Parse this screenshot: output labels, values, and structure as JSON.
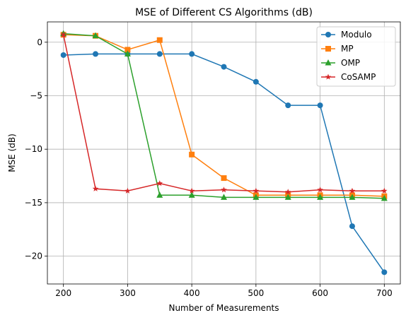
{
  "chart_data": {
    "type": "line",
    "title": "MSE of Different CS Algorithms (dB)",
    "xlabel": "Number of Measurements",
    "ylabel": "MSE (dB)",
    "xlim": [
      175,
      725
    ],
    "ylim": [
      -22.6,
      1.9
    ],
    "xticks": [
      200,
      300,
      400,
      500,
      600,
      700
    ],
    "yticks": [
      0,
      -5,
      -10,
      -15,
      -20
    ],
    "ytick_labels": [
      "0",
      "−5",
      "−10",
      "−15",
      "−20"
    ],
    "grid": true,
    "legend_position": "top-right",
    "x": [
      200,
      250,
      300,
      350,
      400,
      450,
      500,
      550,
      600,
      650,
      700
    ],
    "series": [
      {
        "name": "Modulo",
        "color": "#1f77b4",
        "marker": "circle",
        "values": [
          -1.2,
          -1.1,
          -1.1,
          -1.1,
          -1.1,
          -2.3,
          -3.7,
          -5.9,
          -5.9,
          -17.2,
          -21.5
        ]
      },
      {
        "name": "MP",
        "color": "#ff7f0e",
        "marker": "square",
        "values": [
          0.7,
          0.6,
          -0.7,
          0.2,
          -10.5,
          -12.7,
          -14.3,
          -14.3,
          -14.3,
          -14.3,
          -14.4
        ]
      },
      {
        "name": "OMP",
        "color": "#2ca02c",
        "marker": "triangle",
        "values": [
          0.8,
          0.6,
          -1.1,
          -14.3,
          -14.3,
          -14.5,
          -14.5,
          -14.5,
          -14.5,
          -14.5,
          -14.6
        ]
      },
      {
        "name": "CoSAMP",
        "color": "#d62728",
        "marker": "star",
        "values": [
          0.7,
          -13.7,
          -13.9,
          -13.2,
          -13.9,
          -13.8,
          -13.9,
          -14.0,
          -13.8,
          -13.9,
          -13.9
        ]
      }
    ]
  }
}
